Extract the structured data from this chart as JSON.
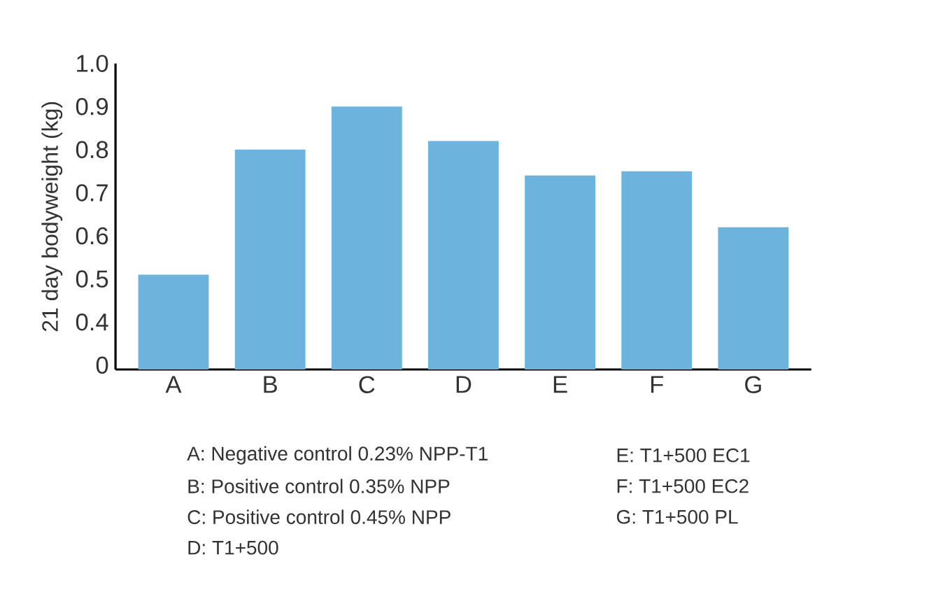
{
  "chart_data": {
    "type": "bar",
    "ylabel": "21 day bodyweight (kg)",
    "categories": [
      "A",
      "B",
      "C",
      "D",
      "E",
      "F",
      "G"
    ],
    "values": [
      0.51,
      0.8,
      0.9,
      0.82,
      0.74,
      0.75,
      0.62
    ],
    "color": "#6cb4de",
    "ylim": [
      0.29,
      1.0
    ],
    "yticks": [
      {
        "value": 0.3,
        "label": "0"
      },
      0.4,
      0.5,
      0.6,
      0.7,
      0.8,
      0.9,
      {
        "value": 1.0,
        "label": "1.0"
      }
    ],
    "grid": false,
    "annotations": [
      "A: Negative control 0.23% NPP-T1",
      "B: Positive control 0.35% NPP",
      "C: Positive control 0.45% NPP",
      "D: T1+500",
      "E: T1+500 EC1",
      "F: T1+500 EC2",
      "G: T1+500 PL"
    ]
  }
}
